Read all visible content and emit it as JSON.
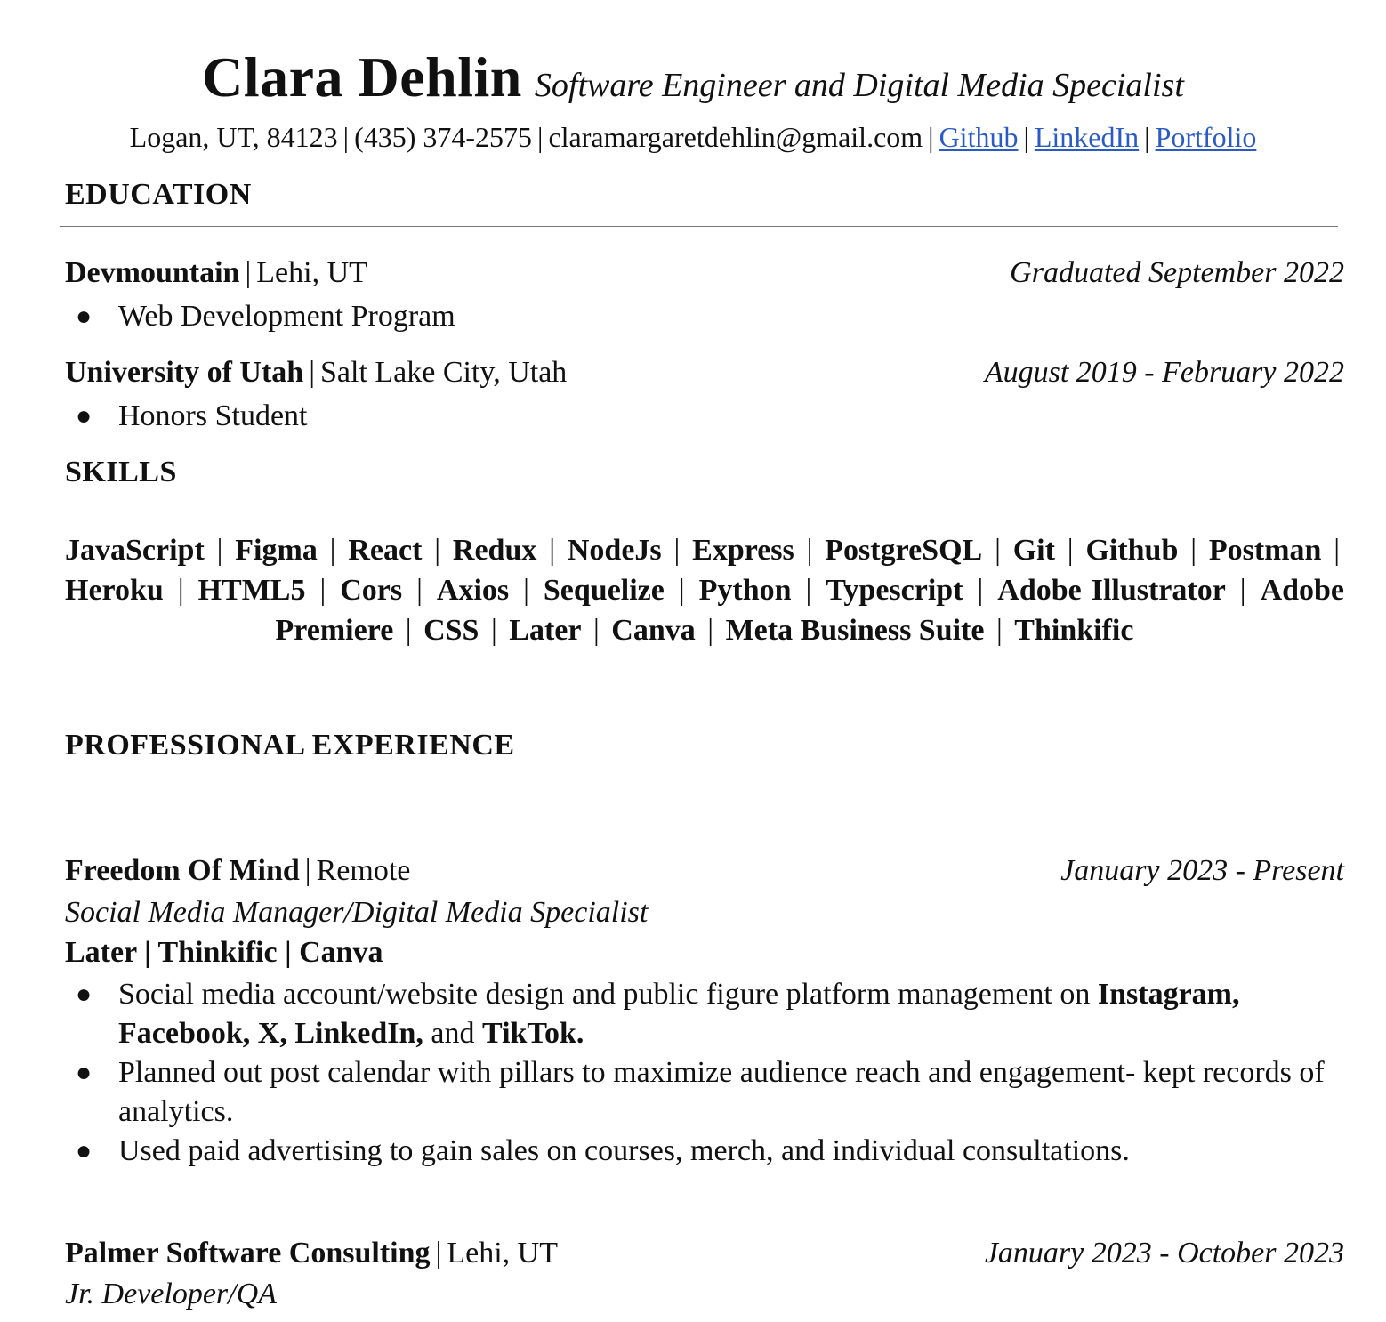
{
  "header": {
    "name": "Clara Dehlin",
    "subtitle": "Software Engineer and Digital Media Specialist",
    "location": "Logan, UT, 84123",
    "phone": "(435) 374-2575",
    "email": "claramargaretdehlin@gmail.com",
    "links": [
      "Github",
      "LinkedIn",
      "Portfolio"
    ],
    "separator": "|"
  },
  "sections": {
    "education": "EDUCATION",
    "skills": "SKILLS",
    "experience": "PROFESSIONAL EXPERIENCE"
  },
  "education": [
    {
      "org": "Devmountain",
      "location": "Lehi, UT",
      "date": "Graduated September 2022",
      "bullets": [
        "Web Development Program"
      ]
    },
    {
      "org": "University of Utah",
      "location": "Salt Lake City, Utah",
      "date": "August 2019 - February 2022",
      "bullets": [
        "Honors Student"
      ]
    }
  ],
  "skills": [
    "JavaScript",
    "Figma",
    "React",
    "Redux",
    "NodeJs",
    "Express",
    "PostgreSQL",
    "Git",
    "Github",
    "Postman",
    "Heroku",
    "HTML5",
    "Cors",
    "Axios",
    "Sequelize",
    "Python",
    "Typescript",
    "Adobe Illustrator",
    "Adobe Premiere",
    "CSS",
    "Later",
    "Canva",
    "Meta Business Suite",
    "Thinkific"
  ],
  "experience": [
    {
      "org": "Freedom Of Mind",
      "location": "Remote",
      "date": "January 2023 - Present",
      "role": "Social Media Manager/Digital Media Specialist",
      "tools": "Later | Thinkific | Canva",
      "bullets": [
        {
          "pre": "Social media account/website design and public figure platform management on ",
          "bold1": "Instagram, Facebook, X, LinkedIn,",
          "mid": " and ",
          "bold2": "TikTok."
        },
        {
          "text": "Planned out post calendar with pillars to maximize audience reach and engagement- kept records of analytics."
        },
        {
          "text": "Used paid advertising to gain sales on courses, merch, and individual consultations."
        }
      ]
    },
    {
      "org": "Palmer Software Consulting",
      "location": "Lehi, UT",
      "date": "January 2023 - October 2023",
      "role": "Jr. Developer/QA"
    }
  ],
  "bullet_glyph": "●"
}
